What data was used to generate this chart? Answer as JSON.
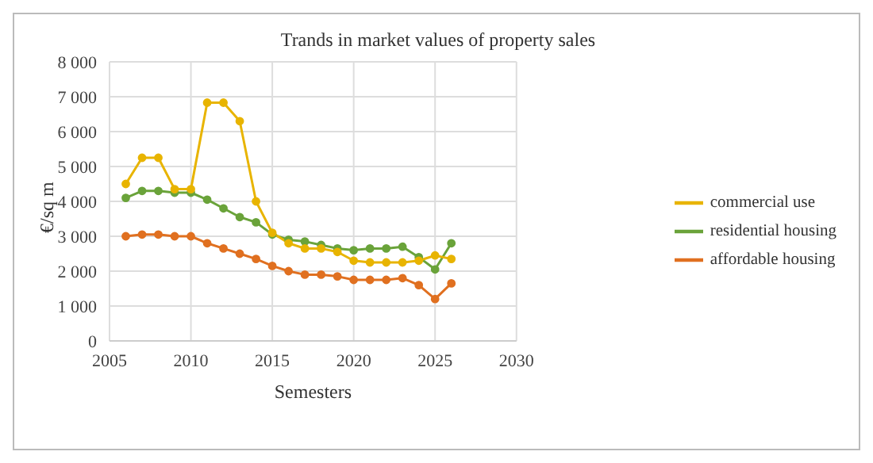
{
  "chart_data": {
    "type": "line",
    "title": "Trands in market values of property sales",
    "xlabel": "Semesters",
    "ylabel": "€/sq m",
    "x": [
      2006,
      2007,
      2008,
      2009,
      2010,
      2011,
      2012,
      2013,
      2014,
      2015,
      2016,
      2017,
      2018,
      2019,
      2020,
      2021,
      2022,
      2023,
      2024,
      2025,
      2026
    ],
    "series": [
      {
        "name": "commercial use",
        "color": "#e8b400",
        "values": [
          4500,
          5250,
          5250,
          4350,
          4350,
          6830,
          6830,
          6300,
          4000,
          3100,
          2800,
          2650,
          2650,
          2550,
          2300,
          2250,
          2250,
          2250,
          2300,
          2450,
          2350
        ]
      },
      {
        "name": "residential housing",
        "color": "#6aa33a",
        "values": [
          4100,
          4300,
          4300,
          4250,
          4250,
          4050,
          3800,
          3550,
          3400,
          3050,
          2900,
          2850,
          2750,
          2650,
          2600,
          2650,
          2650,
          2700,
          2400,
          2050,
          2800
        ]
      },
      {
        "name": "affordable housing",
        "color": "#e07020",
        "values": [
          3000,
          3050,
          3050,
          3000,
          3000,
          2800,
          2650,
          2500,
          2350,
          2150,
          2000,
          1900,
          1900,
          1850,
          1750,
          1750,
          1750,
          1800,
          1600,
          1200,
          1650
        ]
      }
    ],
    "xlim": [
      2005,
      2030
    ],
    "xticks": [
      2005,
      2010,
      2015,
      2020,
      2025,
      2030
    ],
    "ylim": [
      0,
      8000
    ],
    "yticks": [
      0,
      {
        "value": 1000,
        "label": "1 000"
      },
      {
        "value": 2000,
        "label": "2 000"
      },
      {
        "value": 3000,
        "label": "3 000"
      },
      {
        "value": 4000,
        "label": "4 000"
      },
      {
        "value": 5000,
        "label": "5 000"
      },
      {
        "value": 6000,
        "label": "6 000"
      },
      {
        "value": 7000,
        "label": "7 000"
      },
      {
        "value": 8000,
        "label": "8 000"
      }
    ],
    "grid": true,
    "legend": "right",
    "marker": "circle",
    "line_style": "solid"
  }
}
